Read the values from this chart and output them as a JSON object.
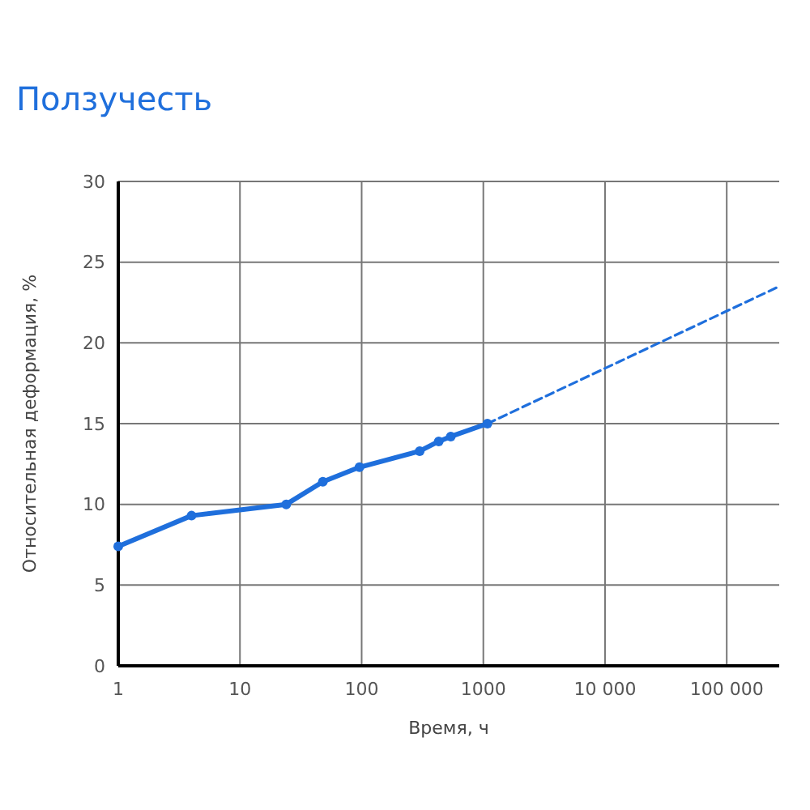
{
  "chart_data": {
    "type": "line",
    "title": "Ползучесть",
    "xlabel": "Время, ч",
    "ylabel": "Относительная деформация, %",
    "log": "x",
    "grid": true,
    "marker": "circle",
    "line_style": "solid",
    "xlim": [
      1,
      270000
    ],
    "xticks": [
      1,
      10,
      100,
      1000,
      {
        "value": 10000,
        "label": "10 000"
      },
      {
        "value": 100000,
        "label": "100 000"
      }
    ],
    "ylim": [
      0,
      30
    ],
    "yticks": [
      0,
      5,
      10,
      15,
      20,
      25,
      30
    ],
    "series": [
      {
        "color": "#1f6fdc",
        "x": [
          1,
          4,
          24,
          48,
          96,
          300,
          430,
          540,
          1080
        ],
        "values": [
          7.4,
          9.3,
          10,
          11.4,
          12.3,
          13.3,
          13.9,
          14.2,
          15
        ]
      },
      {
        "color": "#1f6fdc",
        "x": [
          1080,
          270000
        ],
        "values": [
          15,
          23.5
        ],
        "line_style": "dashed",
        "marker": "none"
      }
    ]
  }
}
